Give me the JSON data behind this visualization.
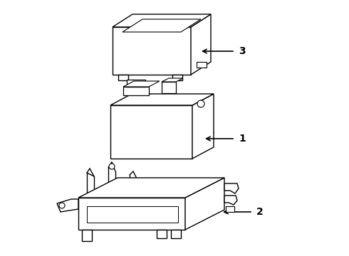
{
  "background_color": "#ffffff",
  "line_color": "#000000",
  "line_width": 1.0,
  "label_fontsize": 10,
  "fig_width": 4.9,
  "fig_height": 3.6,
  "dpi": 100
}
